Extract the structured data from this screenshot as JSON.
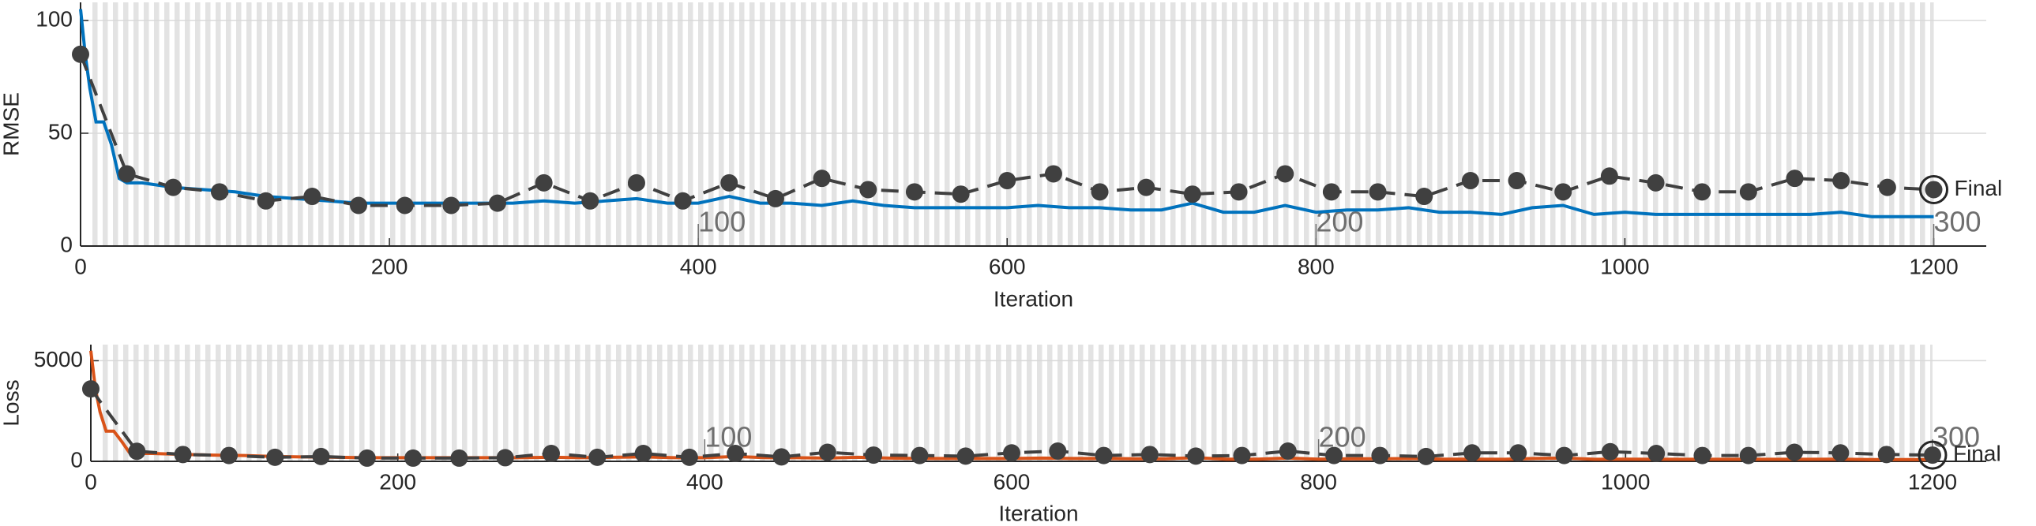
{
  "chart_data": [
    {
      "type": "line",
      "ylabel": "RMSE",
      "xlabel": "Iteration",
      "xlim": [
        0,
        1234
      ],
      "ylim": [
        0,
        108
      ],
      "xticks": [
        0,
        200,
        400,
        600,
        800,
        1000,
        1200
      ],
      "yticks": [
        0,
        50,
        100
      ],
      "grid": true,
      "epoch_ticks": [
        {
          "value": 400,
          "label": "100"
        },
        {
          "value": 800,
          "label": "200"
        },
        {
          "value": 1200,
          "label": "300"
        }
      ],
      "final_label": "Final",
      "series": [
        {
          "color": "#0072bd",
          "style": "solid",
          "x": [
            0,
            3,
            6,
            10,
            15,
            20,
            25,
            30,
            40,
            60,
            80,
            100,
            120,
            140,
            160,
            180,
            200,
            220,
            240,
            260,
            280,
            300,
            320,
            340,
            360,
            380,
            400,
            420,
            440,
            460,
            480,
            500,
            520,
            540,
            560,
            580,
            600,
            620,
            640,
            660,
            680,
            700,
            720,
            740,
            760,
            780,
            800,
            820,
            840,
            860,
            880,
            900,
            920,
            940,
            960,
            980,
            1000,
            1020,
            1040,
            1060,
            1080,
            1100,
            1120,
            1140,
            1160,
            1180,
            1200
          ],
          "values": [
            105,
            85,
            70,
            55,
            55,
            45,
            30,
            28,
            28,
            26,
            25,
            24,
            22,
            21,
            20,
            19,
            19,
            19,
            19,
            19,
            19,
            20,
            19,
            20,
            21,
            19,
            19,
            22,
            19,
            19,
            18,
            20,
            18,
            17,
            17,
            17,
            17,
            18,
            17,
            17,
            16,
            16,
            19,
            15,
            15,
            18,
            15,
            16,
            16,
            17,
            15,
            15,
            14,
            17,
            18,
            14,
            15,
            14,
            14,
            14,
            14,
            14,
            14,
            15,
            13,
            13,
            13
          ]
        },
        {
          "color": "#404040",
          "style": "dashed-marker",
          "x": [
            0,
            30,
            60,
            90,
            120,
            150,
            180,
            210,
            240,
            270,
            300,
            330,
            360,
            390,
            420,
            450,
            480,
            510,
            540,
            570,
            600,
            630,
            660,
            690,
            720,
            750,
            780,
            810,
            840,
            870,
            900,
            930,
            960,
            990,
            1020,
            1050,
            1080,
            1110,
            1140,
            1170,
            1200
          ],
          "values": [
            85,
            32,
            26,
            24,
            20,
            22,
            18,
            18,
            18,
            19,
            28,
            20,
            28,
            20,
            28,
            21,
            30,
            25,
            24,
            23,
            29,
            32,
            24,
            26,
            23,
            24,
            32,
            24,
            24,
            22,
            29,
            29,
            24,
            31,
            28,
            24,
            24,
            30,
            29,
            26,
            25
          ]
        }
      ]
    },
    {
      "type": "line",
      "ylabel": "Loss",
      "xlabel": "Iteration",
      "xlim": [
        0,
        1235
      ],
      "ylim": [
        0,
        5800
      ],
      "xticks": [
        0,
        200,
        400,
        600,
        800,
        1000,
        1200
      ],
      "yticks": [
        0,
        5000
      ],
      "grid": true,
      "epoch_ticks": [
        {
          "value": 400,
          "label": "100"
        },
        {
          "value": 800,
          "label": "200"
        },
        {
          "value": 1200,
          "label": "300"
        }
      ],
      "final_label": "Final",
      "series": [
        {
          "color": "#d95319",
          "style": "solid",
          "x": [
            0,
            3,
            6,
            10,
            15,
            20,
            25,
            30,
            40,
            60,
            80,
            100,
            120,
            140,
            160,
            180,
            200,
            220,
            240,
            260,
            280,
            300,
            320,
            340,
            360,
            380,
            400,
            420,
            440,
            460,
            480,
            500,
            520,
            540,
            560,
            580,
            600,
            620,
            640,
            660,
            680,
            700,
            720,
            740,
            760,
            780,
            800,
            820,
            840,
            860,
            880,
            900,
            920,
            940,
            960,
            980,
            1000,
            1020,
            1040,
            1060,
            1080,
            1100,
            1120,
            1140,
            1160,
            1180,
            1200
          ],
          "values": [
            5500,
            3600,
            2450,
            1500,
            1500,
            1000,
            450,
            390,
            390,
            340,
            310,
            290,
            240,
            220,
            200,
            180,
            180,
            180,
            180,
            180,
            180,
            200,
            180,
            200,
            220,
            180,
            180,
            240,
            180,
            180,
            160,
            200,
            160,
            140,
            140,
            140,
            140,
            160,
            140,
            140,
            130,
            130,
            180,
            110,
            110,
            160,
            110,
            130,
            130,
            140,
            110,
            110,
            100,
            140,
            160,
            100,
            110,
            100,
            100,
            100,
            100,
            100,
            100,
            110,
            85,
            85,
            85
          ]
        },
        {
          "color": "#404040",
          "style": "dashed-marker",
          "x": [
            0,
            30,
            60,
            90,
            120,
            150,
            180,
            210,
            240,
            270,
            300,
            330,
            360,
            390,
            420,
            450,
            480,
            510,
            540,
            570,
            600,
            630,
            660,
            690,
            720,
            750,
            780,
            810,
            840,
            870,
            900,
            930,
            960,
            990,
            1020,
            1050,
            1080,
            1110,
            1140,
            1170,
            1200
          ],
          "values": [
            3600,
            500,
            340,
            290,
            200,
            240,
            160,
            160,
            160,
            180,
            390,
            200,
            390,
            200,
            390,
            220,
            450,
            310,
            290,
            260,
            420,
            510,
            290,
            340,
            260,
            290,
            510,
            290,
            290,
            240,
            420,
            420,
            290,
            480,
            390,
            290,
            290,
            450,
            420,
            340,
            310
          ]
        }
      ]
    }
  ]
}
